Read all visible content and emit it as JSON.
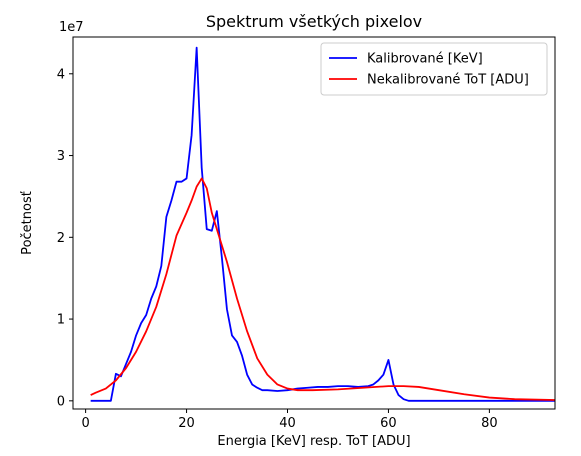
{
  "chart_data": {
    "type": "line",
    "title": "Spektrum všetkých pixelov",
    "xlabel": "Energia [KeV] resp. ToT [ADU]",
    "ylabel": "Početnosť",
    "y_multiplier_label": "1e7",
    "xlim": [
      -2.5,
      93
    ],
    "ylim": [
      -0.1,
      4.45
    ],
    "x_ticks": [
      0,
      20,
      40,
      60,
      80
    ],
    "x_tick_labels": [
      "0",
      "20",
      "40",
      "60",
      "80"
    ],
    "y_ticks": [
      0,
      1,
      2,
      3,
      4
    ],
    "y_tick_labels": [
      "0",
      "1",
      "2",
      "3",
      "4"
    ],
    "grid": false,
    "legend_position": "top-right",
    "series": [
      {
        "name": "Kalibrované [KeV]",
        "color": "#0000ff",
        "x": [
          1,
          3,
          5,
          6,
          7,
          8,
          9,
          10,
          11,
          12,
          13,
          14,
          15,
          16,
          17,
          18,
          19,
          20,
          21,
          22,
          23,
          24,
          25,
          26,
          27,
          28,
          29,
          30,
          31,
          32,
          33,
          34,
          35,
          36,
          38,
          40,
          42,
          44,
          46,
          48,
          50,
          52,
          54,
          56,
          57,
          58,
          59,
          60,
          61,
          62,
          63,
          64,
          66,
          70,
          80,
          93
        ],
        "y": [
          0.0,
          0.0,
          0.0,
          0.33,
          0.3,
          0.45,
          0.6,
          0.8,
          0.95,
          1.05,
          1.25,
          1.4,
          1.65,
          2.25,
          2.45,
          2.68,
          2.68,
          2.72,
          3.25,
          4.32,
          2.85,
          2.1,
          2.08,
          2.32,
          1.75,
          1.12,
          0.8,
          0.72,
          0.55,
          0.32,
          0.2,
          0.16,
          0.13,
          0.13,
          0.12,
          0.13,
          0.15,
          0.16,
          0.17,
          0.17,
          0.18,
          0.18,
          0.17,
          0.18,
          0.2,
          0.25,
          0.32,
          0.5,
          0.2,
          0.07,
          0.02,
          0.0,
          0.0,
          0.0,
          0.0,
          0.0
        ]
      },
      {
        "name": "Nekalibrované ToT [ADU]",
        "color": "#ff0000",
        "x": [
          1,
          2,
          4,
          6,
          8,
          10,
          12,
          14,
          16,
          18,
          20,
          21,
          22,
          23,
          24,
          25,
          26,
          28,
          30,
          32,
          34,
          36,
          38,
          40,
          42,
          45,
          50,
          55,
          60,
          63,
          66,
          70,
          75,
          80,
          85,
          93
        ],
        "y": [
          0.07,
          0.1,
          0.15,
          0.25,
          0.4,
          0.6,
          0.85,
          1.15,
          1.55,
          2.02,
          2.3,
          2.45,
          2.62,
          2.72,
          2.6,
          2.3,
          2.1,
          1.7,
          1.25,
          0.85,
          0.52,
          0.32,
          0.2,
          0.15,
          0.13,
          0.13,
          0.14,
          0.16,
          0.18,
          0.18,
          0.17,
          0.13,
          0.08,
          0.04,
          0.02,
          0.01
        ]
      }
    ]
  }
}
